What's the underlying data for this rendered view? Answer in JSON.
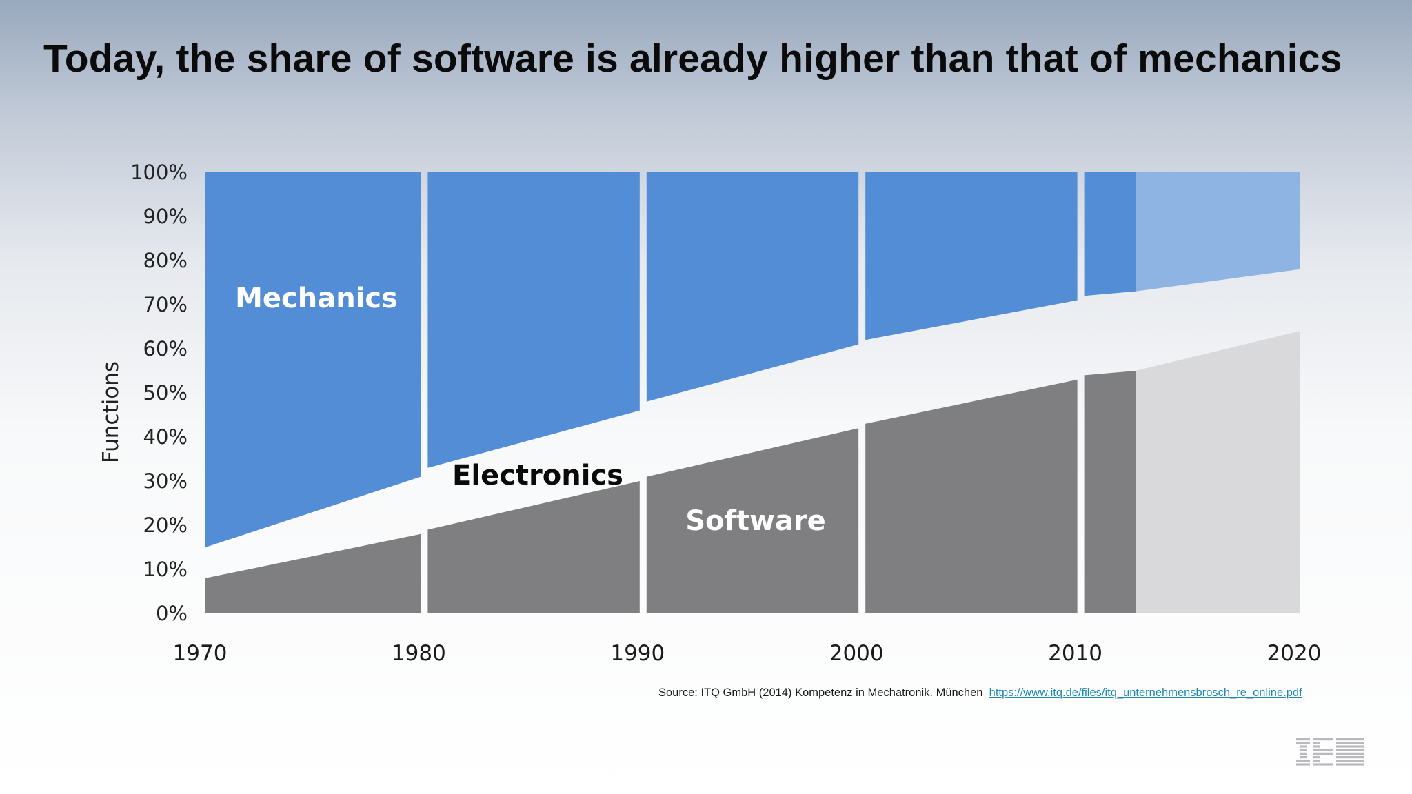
{
  "title": "Today, the share of software is already higher than that of mechanics",
  "chart_data": {
    "type": "area",
    "ylabel": "Functions",
    "y_ticks": [
      "0%",
      "10%",
      "20%",
      "30%",
      "40%",
      "50%",
      "60%",
      "70%",
      "80%",
      "90%",
      "100%"
    ],
    "x_ticks": [
      "1970",
      "1980",
      "1990",
      "2000",
      "2010",
      "2020"
    ],
    "xlim": [
      1970,
      2020
    ],
    "ylim": [
      0,
      100
    ],
    "region_labels": {
      "mechanics": "Mechanics",
      "electronics": "Electronics",
      "software": "Software"
    },
    "colors": {
      "mechanics": "#538dd5",
      "mechanics_forecast": "#8db4e2",
      "software": "#7f7e80",
      "software_forecast": "#d9d8db",
      "electronics": "#ffffff"
    },
    "periods": [
      {
        "start": 1970,
        "end": 1980,
        "software_start": 8,
        "software_end": 18,
        "mechanics_bottom_start": 15,
        "mechanics_bottom_end": 31
      },
      {
        "start": 1980,
        "end": 1990,
        "software_start": 19,
        "software_end": 30,
        "mechanics_bottom_start": 33,
        "mechanics_bottom_end": 46
      },
      {
        "start": 1990,
        "end": 2000,
        "software_start": 31,
        "software_end": 42,
        "mechanics_bottom_start": 48,
        "mechanics_bottom_end": 61
      },
      {
        "start": 2000,
        "end": 2010,
        "software_start": 43,
        "software_end": 53,
        "mechanics_bottom_start": 62,
        "mechanics_bottom_end": 71
      },
      {
        "start": 2010,
        "end": 2012.5,
        "software_start": 54,
        "software_end": 55,
        "mechanics_bottom_start": 72,
        "mechanics_bottom_end": 73
      },
      {
        "start": 2012.5,
        "end": 2020,
        "software_start": 55,
        "software_end": 64,
        "mechanics_bottom_start": 73,
        "mechanics_bottom_end": 78,
        "forecast": true
      }
    ]
  },
  "source": {
    "text": "Source: ITQ GmbH (2014) Kompetenz in Mechatronik. München",
    "link": "https://www.itq.de/files/itq_unternehmensbrosch_re_online.pdf"
  },
  "logo": {
    "name": "ibm-logo",
    "text": "IBM"
  }
}
